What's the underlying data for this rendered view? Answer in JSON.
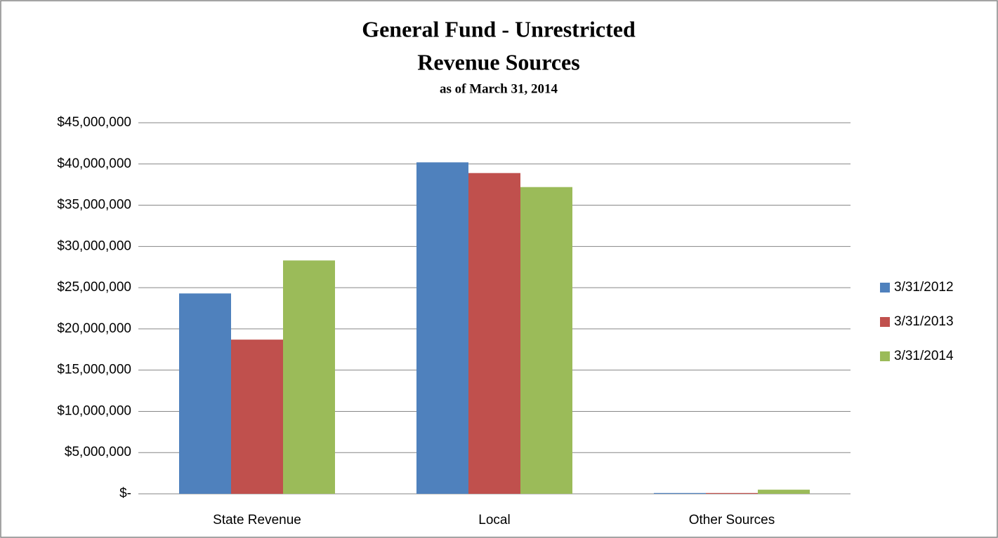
{
  "chart_data": {
    "type": "bar",
    "title": [
      "General Fund - Unrestricted",
      "Revenue Sources"
    ],
    "subtitle": "as of March 31, 2014",
    "categories": [
      "State Revenue",
      "Local",
      "Other Sources"
    ],
    "series": [
      {
        "name": "3/31/2012",
        "color": "#4f81bd",
        "values": [
          24300000,
          40200000,
          100000
        ]
      },
      {
        "name": "3/31/2013",
        "color": "#c0504d",
        "values": [
          18700000,
          38900000,
          100000
        ]
      },
      {
        "name": "3/31/2014",
        "color": "#9bbb59",
        "values": [
          28300000,
          37200000,
          500000
        ]
      }
    ],
    "ylim": [
      0,
      45000000
    ],
    "yticks": [
      {
        "value": 0,
        "label": "$-"
      },
      {
        "value": 5000000,
        "label": "$5,000,000"
      },
      {
        "value": 10000000,
        "label": "$10,000,000"
      },
      {
        "value": 15000000,
        "label": "$15,000,000"
      },
      {
        "value": 20000000,
        "label": "$20,000,000"
      },
      {
        "value": 25000000,
        "label": "$25,000,000"
      },
      {
        "value": 30000000,
        "label": "$30,000,000"
      },
      {
        "value": 35000000,
        "label": "$35,000,000"
      },
      {
        "value": 40000000,
        "label": "$40,000,000"
      },
      {
        "value": 45000000,
        "label": "$45,000,000"
      }
    ],
    "grid": true,
    "legend": "right"
  }
}
